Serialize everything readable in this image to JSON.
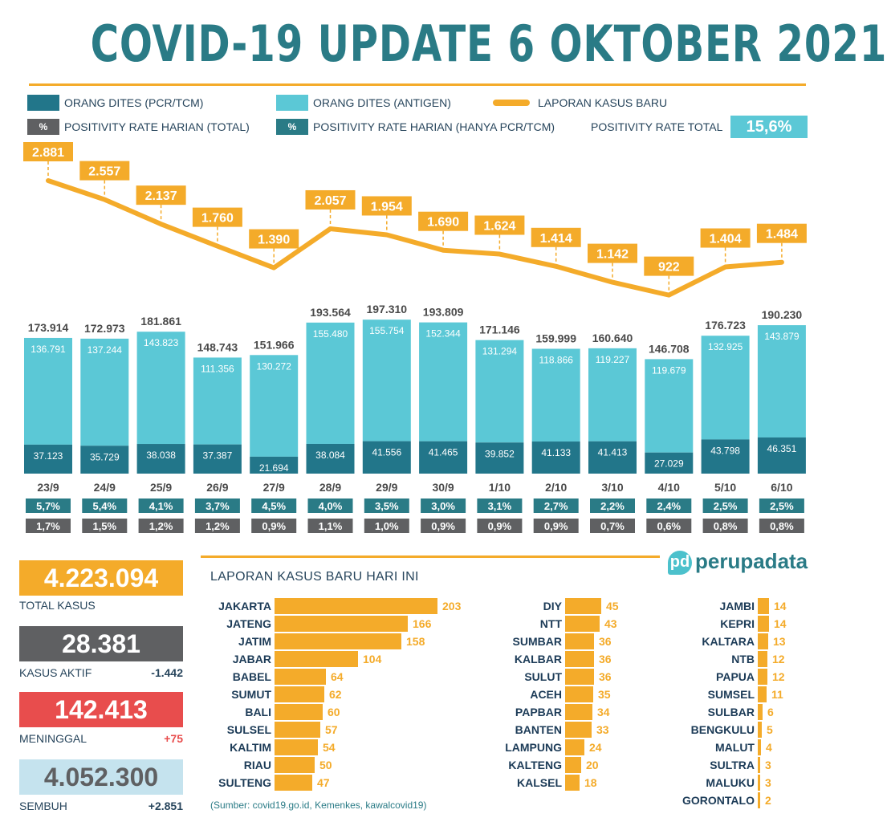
{
  "title": "COVID-19 UPDATE 6 OKTOBER 2021",
  "legend": {
    "pcr": "ORANG DITES (PCR/TCM)",
    "antigen": "ORANG DITES (ANTIGEN)",
    "laporan": "LAPORAN KASUS BARU",
    "pct_symbol": "%",
    "pr_total": "POSITIVITY RATE HARIAN (TOTAL)",
    "pr_pcr": "POSITIVITY RATE HARIAN (HANYA PCR/TCM)",
    "pr_overall_label": "POSITIVITY RATE TOTAL",
    "pr_overall_value": "15,6%"
  },
  "colors": {
    "pcr": "#22768a",
    "antigen": "#5bc8d6",
    "line": "#f4ab2a",
    "pr_total": "#5f6062",
    "pr_pcr": "#2a7b86",
    "title": "#2a7b86",
    "kasus_aktif": "#5f6062",
    "meninggal": "#e84d4d",
    "sembuh": "#c5e3ee",
    "total": "#f4ab2a"
  },
  "chart_data": {
    "type": "bar",
    "categories": [
      "23/9",
      "24/9",
      "25/9",
      "26/9",
      "27/9",
      "28/9",
      "29/9",
      "30/9",
      "1/10",
      "2/10",
      "3/10",
      "4/10",
      "5/10",
      "6/10"
    ],
    "series": [
      {
        "name": "ORANG DITES (PCR/TCM)",
        "values": [
          37123,
          35729,
          38038,
          37387,
          21694,
          38084,
          41556,
          41465,
          39852,
          41133,
          41413,
          27029,
          43798,
          46351
        ],
        "labels": [
          "37.123",
          "35.729",
          "38.038",
          "37.387",
          "21.694",
          "38.084",
          "41.556",
          "41.465",
          "39.852",
          "41.133",
          "41.413",
          "27.029",
          "43.798",
          "46.351"
        ]
      },
      {
        "name": "ORANG DITES (ANTIGEN)",
        "values": [
          136791,
          137244,
          143823,
          111356,
          130272,
          155480,
          155754,
          152344,
          131294,
          118866,
          119227,
          119679,
          132925,
          143879
        ],
        "labels": [
          "136.791",
          "137.244",
          "143.823",
          "111.356",
          "130.272",
          "155.480",
          "155.754",
          "152.344",
          "131.294",
          "118.866",
          "119.227",
          "119.679",
          "132.925",
          "143.879"
        ]
      },
      {
        "name": "LAPORAN KASUS BARU",
        "values": [
          2881,
          2557,
          2137,
          1760,
          1390,
          2057,
          1954,
          1690,
          1624,
          1414,
          1142,
          922,
          1404,
          1484
        ],
        "labels": [
          "2.881",
          "2.557",
          "2.137",
          "1.760",
          "1.390",
          "2.057",
          "1.954",
          "1.690",
          "1.624",
          "1.414",
          "1.142",
          "922",
          "1.404",
          "1.484"
        ]
      }
    ],
    "totals": [
      173914,
      172973,
      181861,
      148743,
      151966,
      193564,
      197310,
      193809,
      171146,
      159999,
      160640,
      146708,
      176723,
      190230
    ],
    "total_labels": [
      "173.914",
      "172.973",
      "181.861",
      "148.743",
      "151.966",
      "193.564",
      "197.310",
      "193.809",
      "171.146",
      "159.999",
      "160.640",
      "146.708",
      "176.723",
      "190.230"
    ],
    "pr_pcr": [
      "5,7%",
      "5,4%",
      "4,1%",
      "3,7%",
      "4,5%",
      "4,0%",
      "3,5%",
      "3,0%",
      "3,1%",
      "2,7%",
      "2,2%",
      "2,4%",
      "2,5%",
      "2,5%"
    ],
    "pr_total": [
      "1,7%",
      "1,5%",
      "1,2%",
      "1,2%",
      "0,9%",
      "1,1%",
      "1,0%",
      "0,9%",
      "0,9%",
      "0,9%",
      "0,7%",
      "0,6%",
      "0,8%",
      "0,8%"
    ]
  },
  "kpi": {
    "total_value": "4.223.094",
    "total_label": "TOTAL KASUS",
    "aktif_value": "28.381",
    "aktif_label": "KASUS AKTIF",
    "aktif_delta": "-1.442",
    "meninggal_value": "142.413",
    "meninggal_label": "MENINGGAL",
    "meninggal_delta": "+75",
    "sembuh_value": "4.052.300",
    "sembuh_label": "SEMBUH",
    "sembuh_delta": "+2.851"
  },
  "provinces_title": "LAPORAN KASUS BARU HARI INI",
  "provinces": [
    [
      [
        "JAKARTA",
        203
      ],
      [
        "JATENG",
        166
      ],
      [
        "JATIM",
        158
      ],
      [
        "JABAR",
        104
      ],
      [
        "BABEL",
        64
      ],
      [
        "SUMUT",
        62
      ],
      [
        "BALI",
        60
      ],
      [
        "SULSEL",
        57
      ],
      [
        "KALTIM",
        54
      ],
      [
        "RIAU",
        50
      ],
      [
        "SULTENG",
        47
      ]
    ],
    [
      [
        "DIY",
        45
      ],
      [
        "NTT",
        43
      ],
      [
        "SUMBAR",
        36
      ],
      [
        "KALBAR",
        36
      ],
      [
        "SULUT",
        36
      ],
      [
        "ACEH",
        35
      ],
      [
        "PAPBAR",
        34
      ],
      [
        "BANTEN",
        33
      ],
      [
        "LAMPUNG",
        24
      ],
      [
        "KALTENG",
        20
      ],
      [
        "KALSEL",
        18
      ]
    ],
    [
      [
        "JAMBI",
        14
      ],
      [
        "KEPRI",
        14
      ],
      [
        "KALTARA",
        13
      ],
      [
        "NTB",
        12
      ],
      [
        "PAPUA",
        12
      ],
      [
        "SUMSEL",
        11
      ],
      [
        "SULBAR",
        6
      ],
      [
        "BENGKULU",
        5
      ],
      [
        "MALUT",
        4
      ],
      [
        "SULTRA",
        3
      ],
      [
        "MALUKU",
        3
      ],
      [
        "GORONTALO",
        2
      ]
    ]
  ],
  "source": "(Sumber: covid19.go.id, Kemenkes, kawalcovid19)",
  "logo": {
    "mark": "pd",
    "text": "perupadata"
  }
}
